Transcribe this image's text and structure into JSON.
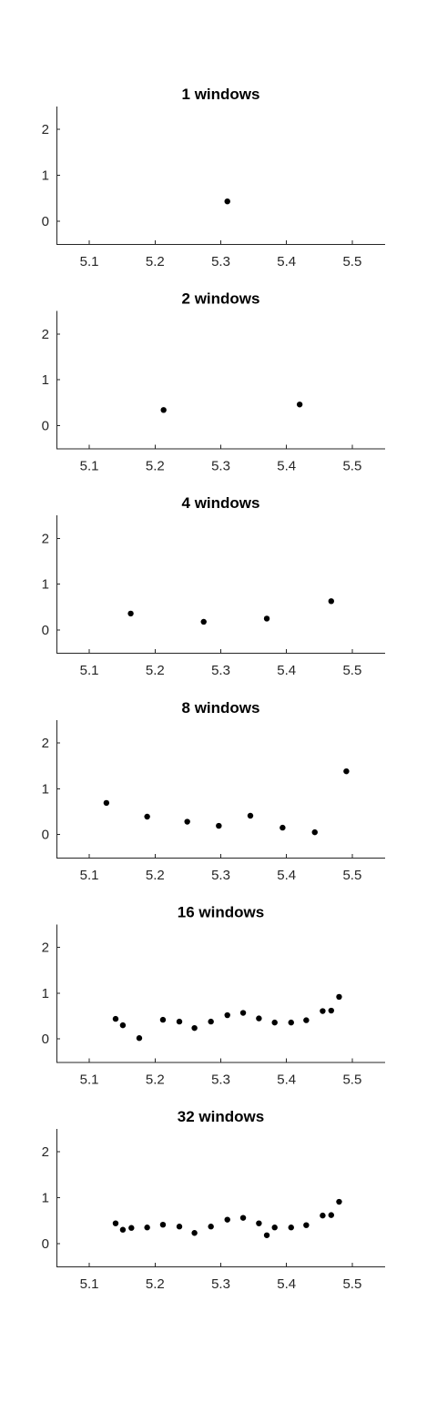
{
  "chart_data": [
    {
      "type": "scatter",
      "title": "1 windows",
      "xlim": [
        5.05,
        5.55
      ],
      "ylim": [
        -0.5,
        2.5
      ],
      "xticks": [
        "5.1",
        "5.2",
        "5.3",
        "5.4",
        "5.5"
      ],
      "yticks": [
        "0",
        "1",
        "2"
      ],
      "xlabel": "",
      "ylabel": "",
      "marker_color": "#000000",
      "grid": false,
      "points": [
        {
          "x": 5.31,
          "y": 0.43
        }
      ]
    },
    {
      "type": "scatter",
      "title": "2 windows",
      "xlim": [
        5.05,
        5.55
      ],
      "ylim": [
        -0.5,
        2.5
      ],
      "xticks": [
        "5.1",
        "5.2",
        "5.3",
        "5.4",
        "5.5"
      ],
      "yticks": [
        "0",
        "1",
        "2"
      ],
      "xlabel": "",
      "ylabel": "",
      "marker_color": "#000000",
      "grid": false,
      "points": [
        {
          "x": 5.213,
          "y": 0.34
        },
        {
          "x": 5.42,
          "y": 0.46
        }
      ]
    },
    {
      "type": "scatter",
      "title": "4 windows",
      "xlim": [
        5.05,
        5.55
      ],
      "ylim": [
        -0.5,
        2.5
      ],
      "xticks": [
        "5.1",
        "5.2",
        "5.3",
        "5.4",
        "5.5"
      ],
      "yticks": [
        "0",
        "1",
        "2"
      ],
      "xlabel": "",
      "ylabel": "",
      "marker_color": "#000000",
      "grid": false,
      "points": [
        {
          "x": 5.163,
          "y": 0.36
        },
        {
          "x": 5.274,
          "y": 0.18
        },
        {
          "x": 5.37,
          "y": 0.25
        },
        {
          "x": 5.468,
          "y": 0.63
        }
      ]
    },
    {
      "type": "scatter",
      "title": "8 windows",
      "xlim": [
        5.05,
        5.55
      ],
      "ylim": [
        -0.5,
        2.5
      ],
      "xticks": [
        "5.1",
        "5.2",
        "5.3",
        "5.4",
        "5.5"
      ],
      "yticks": [
        "0",
        "1",
        "2"
      ],
      "xlabel": "",
      "ylabel": "",
      "marker_color": "#000000",
      "grid": false,
      "points": [
        {
          "x": 5.126,
          "y": 0.69
        },
        {
          "x": 5.188,
          "y": 0.39
        },
        {
          "x": 5.249,
          "y": 0.28
        },
        {
          "x": 5.297,
          "y": 0.19
        },
        {
          "x": 5.345,
          "y": 0.41
        },
        {
          "x": 5.394,
          "y": 0.15
        },
        {
          "x": 5.443,
          "y": 0.05
        },
        {
          "x": 5.491,
          "y": 1.38
        }
      ]
    },
    {
      "type": "scatter",
      "title": "16 windows",
      "xlim": [
        5.05,
        5.55
      ],
      "ylim": [
        -0.5,
        2.5
      ],
      "xticks": [
        "5.1",
        "5.2",
        "5.3",
        "5.4",
        "5.5"
      ],
      "yticks": [
        "0",
        "1",
        "2"
      ],
      "xlabel": "",
      "ylabel": "",
      "marker_color": "#000000",
      "grid": false,
      "points": [
        {
          "x": 5.14,
          "y": 0.44
        },
        {
          "x": 5.151,
          "y": 0.3
        },
        {
          "x": 5.176,
          "y": 0.02
        },
        {
          "x": 5.212,
          "y": 0.42
        },
        {
          "x": 5.237,
          "y": 0.38
        },
        {
          "x": 5.26,
          "y": 0.24
        },
        {
          "x": 5.285,
          "y": 0.38
        },
        {
          "x": 5.31,
          "y": 0.52
        },
        {
          "x": 5.334,
          "y": 0.57
        },
        {
          "x": 5.358,
          "y": 0.45
        },
        {
          "x": 5.382,
          "y": 0.36
        },
        {
          "x": 5.407,
          "y": 0.36
        },
        {
          "x": 5.43,
          "y": 0.41
        },
        {
          "x": 5.455,
          "y": 0.61
        },
        {
          "x": 5.468,
          "y": 0.62
        },
        {
          "x": 5.48,
          "y": 0.92
        }
      ]
    },
    {
      "type": "scatter",
      "title": "32 windows",
      "xlim": [
        5.05,
        5.55
      ],
      "ylim": [
        -0.5,
        2.5
      ],
      "xticks": [
        "5.1",
        "5.2",
        "5.3",
        "5.4",
        "5.5"
      ],
      "yticks": [
        "0",
        "1",
        "2"
      ],
      "xlabel": "",
      "ylabel": "",
      "marker_color": "#000000",
      "grid": false,
      "points": [
        {
          "x": 5.14,
          "y": 0.44
        },
        {
          "x": 5.151,
          "y": 0.3
        },
        {
          "x": 5.164,
          "y": 0.34
        },
        {
          "x": 5.188,
          "y": 0.35
        },
        {
          "x": 5.212,
          "y": 0.41
        },
        {
          "x": 5.237,
          "y": 0.37
        },
        {
          "x": 5.26,
          "y": 0.23
        },
        {
          "x": 5.285,
          "y": 0.37
        },
        {
          "x": 5.31,
          "y": 0.52
        },
        {
          "x": 5.334,
          "y": 0.56
        },
        {
          "x": 5.358,
          "y": 0.44
        },
        {
          "x": 5.37,
          "y": 0.18
        },
        {
          "x": 5.382,
          "y": 0.35
        },
        {
          "x": 5.407,
          "y": 0.35
        },
        {
          "x": 5.43,
          "y": 0.4
        },
        {
          "x": 5.455,
          "y": 0.61
        },
        {
          "x": 5.468,
          "y": 0.62
        },
        {
          "x": 5.48,
          "y": 0.91
        }
      ]
    }
  ]
}
